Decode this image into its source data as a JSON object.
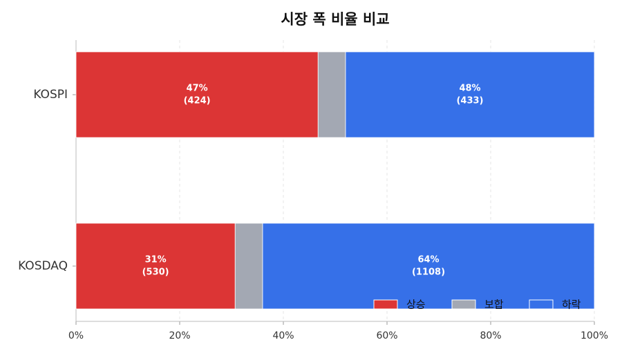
{
  "chart_data": {
    "type": "stacked-barh",
    "title": "시장 폭 비율 비교",
    "categories": [
      "KOSPI",
      "KOSDAQ"
    ],
    "series": [
      {
        "name": "상승",
        "color": "#dc3535",
        "values": [
          46.7,
          30.7
        ],
        "value_labels": [
          "47%",
          "31%"
        ],
        "count_labels": [
          "(424)",
          "(530)"
        ]
      },
      {
        "name": "보합",
        "color": "#a3a8b3",
        "values": [
          5.3,
          5.3
        ]
      },
      {
        "name": "하락",
        "color": "#3670e8",
        "values": [
          48.0,
          64.0
        ],
        "value_labels": [
          "48%",
          "64%"
        ],
        "count_labels": [
          "(433)",
          "(1108)"
        ]
      }
    ],
    "xlim": [
      0,
      100
    ],
    "xticks": [
      {
        "value": 0,
        "label": "0%"
      },
      {
        "value": 20,
        "label": "20%"
      },
      {
        "value": 40,
        "label": "40%"
      },
      {
        "value": 60,
        "label": "60%"
      },
      {
        "value": 80,
        "label": "80%"
      },
      {
        "value": 100,
        "label": "100%"
      }
    ],
    "grid": true,
    "legend": "lower right"
  }
}
